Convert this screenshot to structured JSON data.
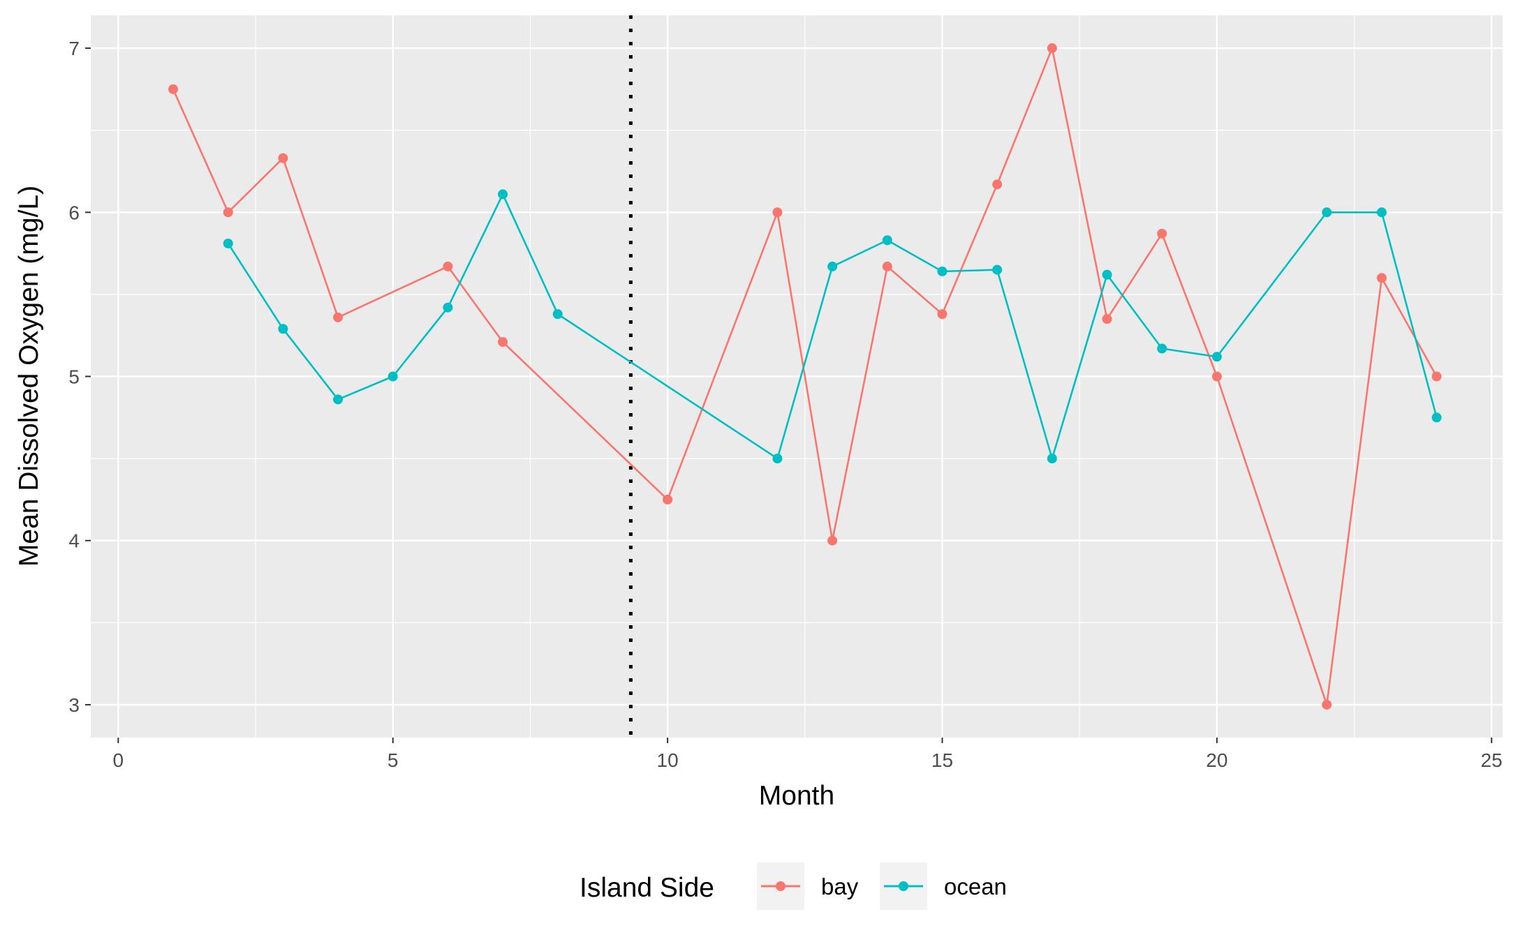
{
  "chart_data": {
    "type": "line",
    "title": "",
    "xlabel": "Month",
    "ylabel": "Mean Dissolved Oxygen (mg/L)",
    "xlim": [
      -0.5,
      25.2
    ],
    "ylim": [
      2.8,
      7.2
    ],
    "x_ticks": [
      0,
      5,
      10,
      15,
      20,
      25
    ],
    "y_ticks": [
      3,
      4,
      5,
      6,
      7
    ],
    "grid": true,
    "vline_x": 9.33,
    "legend": {
      "title": "Island Side",
      "position": "bottom"
    },
    "series": [
      {
        "name": "bay",
        "color": "#F8766D",
        "points": [
          [
            1,
            6.75
          ],
          [
            2,
            6.0
          ],
          [
            3,
            6.33
          ],
          [
            4,
            5.36
          ],
          [
            6,
            5.67
          ],
          [
            7,
            5.21
          ],
          [
            10,
            4.25
          ],
          [
            12,
            6.0
          ],
          [
            13,
            4.0
          ],
          [
            14,
            5.67
          ],
          [
            15,
            5.38
          ],
          [
            16,
            6.17
          ],
          [
            17,
            7.0
          ],
          [
            18,
            5.35
          ],
          [
            19,
            5.87
          ],
          [
            20,
            5.0
          ],
          [
            22,
            3.0
          ],
          [
            23,
            5.6
          ],
          [
            24,
            5.0
          ]
        ]
      },
      {
        "name": "ocean",
        "color": "#00BFC4",
        "points": [
          [
            2,
            5.81
          ],
          [
            3,
            5.29
          ],
          [
            4,
            4.86
          ],
          [
            5,
            5.0
          ],
          [
            6,
            5.42
          ],
          [
            7,
            6.11
          ],
          [
            8,
            5.38
          ],
          [
            12,
            4.5
          ],
          [
            13,
            5.67
          ],
          [
            14,
            5.83
          ],
          [
            15,
            5.64
          ],
          [
            16,
            5.65
          ],
          [
            17,
            4.5
          ],
          [
            18,
            5.62
          ],
          [
            19,
            5.17
          ],
          [
            20,
            5.12
          ],
          [
            22,
            6.0
          ],
          [
            23,
            6.0
          ],
          [
            24,
            4.75
          ]
        ]
      }
    ]
  }
}
